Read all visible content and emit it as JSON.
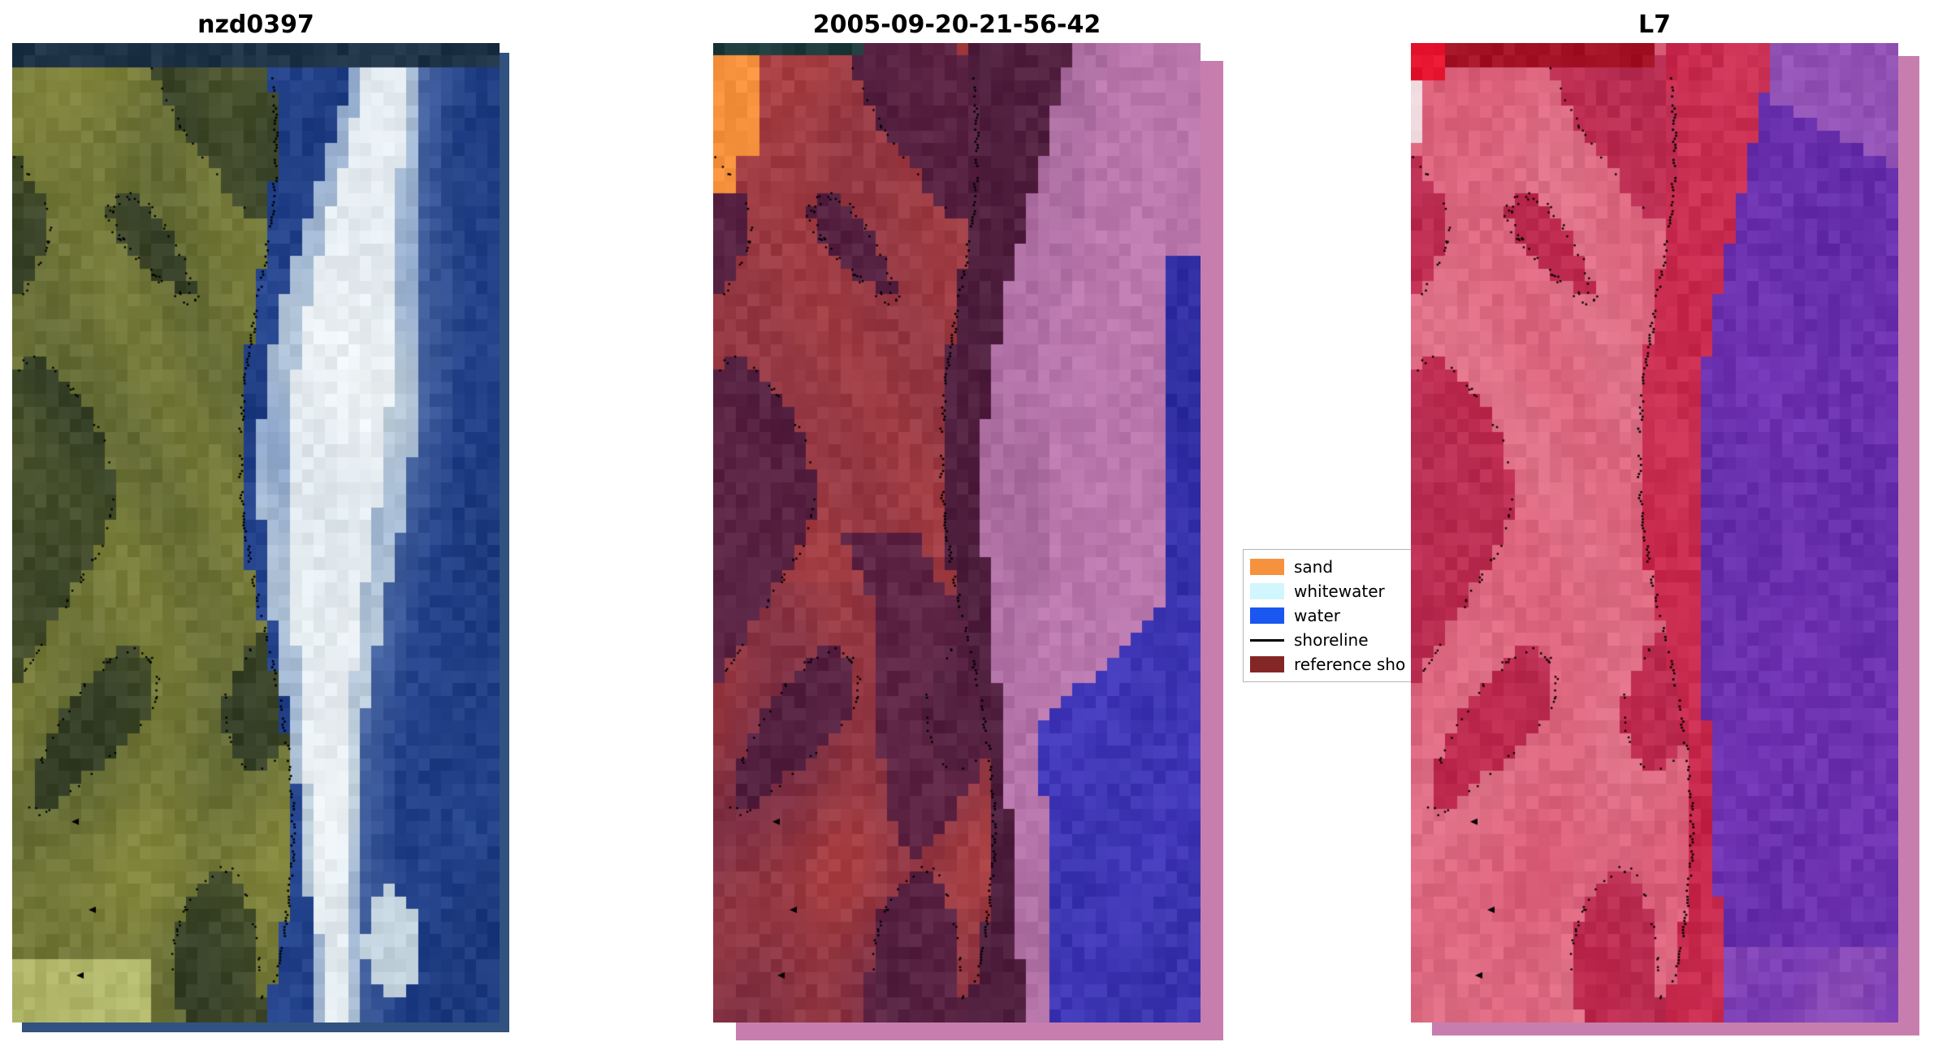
{
  "figure": {
    "background": "#ffffff",
    "shoreline_dot_color": "#000000"
  },
  "panels": [
    {
      "id": "rgb",
      "title": "nzd0397",
      "palette": {
        "top": "#1f3347",
        "land": "#8e9140",
        "land_light": "#c2c97e",
        "land_dark": "#4f5830",
        "land_darker": "#333d26",
        "white": "#edf2f5",
        "white_edge": "#c3d3de",
        "water_light": "#6e8cc0",
        "water": "#2a4b97",
        "water_deep": "#152f6e"
      }
    },
    {
      "id": "classified",
      "title": "2005-09-20-21-56-42",
      "palette": {
        "top_strip": "#1d3a3a",
        "sand": "#f6913e",
        "land": "#b24343",
        "land_dark": "#5e2545",
        "transition": "#4e1f3e",
        "band": "#b877ad",
        "frame": "#c77eae",
        "water_blue": "#4339bb",
        "water_navy": "#2c2c9c"
      }
    },
    {
      "id": "l7",
      "title": "L7",
      "palette": {
        "top_strip": "#a41326",
        "corner": "#e81630",
        "corner_white": "#f2dde3",
        "land": "#d8536f",
        "land_light": "#e27f93",
        "land_dark": "#b73054",
        "transition": "#c62449",
        "band": "#de6a84",
        "water": "#7134b4",
        "water_dark": "#5a28a0",
        "mauve": "#b473b8",
        "frame": "#c77eae"
      }
    }
  ],
  "legend": {
    "items": [
      {
        "label": "sand",
        "swatch": "#f6913e",
        "kind": "patch"
      },
      {
        "label": "whitewater",
        "swatch": "#d2f6fd",
        "kind": "patch"
      },
      {
        "label": "water",
        "swatch": "#1a56f0",
        "kind": "patch"
      },
      {
        "label": "shoreline",
        "swatch": "#000000",
        "kind": "line"
      },
      {
        "label": "reference sho",
        "swatch": "#842626",
        "kind": "patch"
      }
    ]
  }
}
